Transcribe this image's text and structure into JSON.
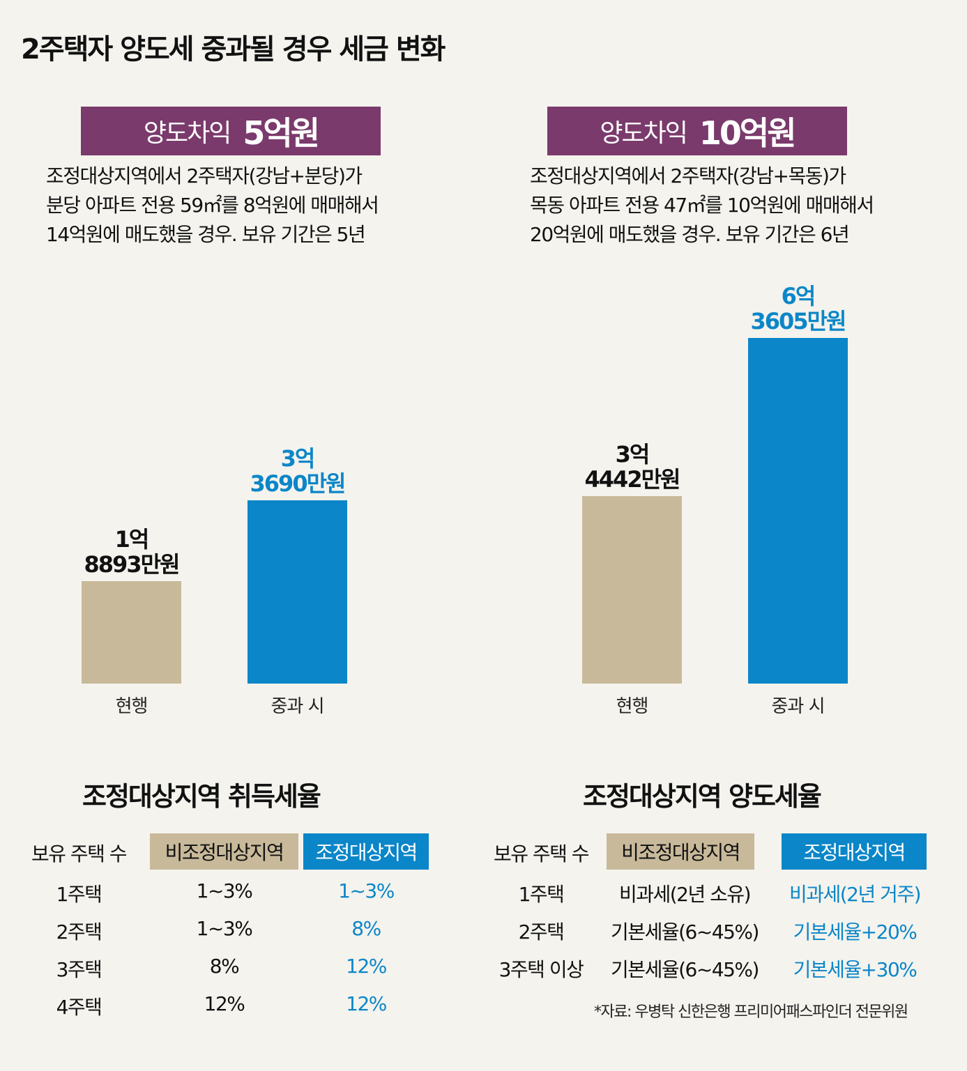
{
  "title": "2주택자 양도세 중과될 경우 세금 변화",
  "colors": {
    "banner": "#7b3a6c",
    "current": "#c8b99a",
    "heavy": "#0b86c8"
  },
  "panels": [
    {
      "banner_label": "양도차익",
      "banner_amount": "5억원",
      "desc": [
        "조정대상지역에서 2주택자(강남+분당)가",
        "분당 아파트 전용 59㎡를 8억원에 매매해서",
        "14억원에 매도했을 경우. 보유 기간은 5년"
      ],
      "bar_labels": [
        [
          "1억",
          "8893만원"
        ],
        [
          "3억",
          "3690만원"
        ]
      ]
    },
    {
      "banner_label": "양도차익",
      "banner_amount": "10억원",
      "desc": [
        "조정대상지역에서 2주택자(강남+목동)가",
        "목동 아파트 전용 47㎡를 10억원에 매매해서",
        "20억원에 매도했을 경우. 보유 기간은 6년"
      ],
      "bar_labels": [
        [
          "3억",
          "4442만원"
        ],
        [
          "6억",
          "3605만원"
        ]
      ]
    }
  ],
  "chart_data": [
    {
      "type": "bar",
      "categories": [
        "현행",
        "중과 시"
      ],
      "values": [
        18893,
        33690
      ],
      "unit": "만원",
      "ylim": [
        0,
        63605
      ]
    },
    {
      "type": "bar",
      "categories": [
        "현행",
        "중과 시"
      ],
      "values": [
        34442,
        63605
      ],
      "unit": "만원",
      "ylim": [
        0,
        63605
      ]
    }
  ],
  "acq_table": {
    "title": "조정대상지역 취득세율",
    "headers": [
      "보유 주택 수",
      "비조정대상지역",
      "조정대상지역"
    ],
    "rows": [
      [
        "1주택",
        "1~3%",
        "1~3%"
      ],
      [
        "2주택",
        "1~3%",
        "8%"
      ],
      [
        "3주택",
        "8%",
        "12%"
      ],
      [
        "4주택",
        "12%",
        "12%"
      ]
    ]
  },
  "trans_table": {
    "title": "조정대상지역 양도세율",
    "headers": [
      "보유 주택 수",
      "비조정대상지역",
      "조정대상지역"
    ],
    "rows": [
      [
        "1주택",
        "비과세(2년 소유)",
        "비과세(2년 거주)"
      ],
      [
        "2주택",
        "기본세율(6~45%)",
        "기본세율+20%"
      ],
      [
        "3주택 이상",
        "기본세율(6~45%)",
        "기본세율+30%"
      ]
    ]
  },
  "source": "*자료: 우병탁 신한은행 프리미어패스파인더 전문위원"
}
